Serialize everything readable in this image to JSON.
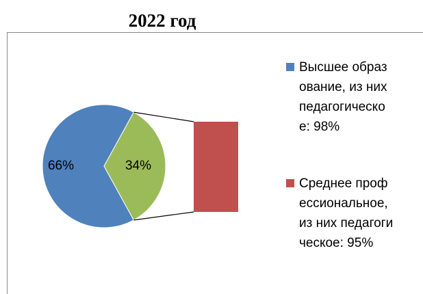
{
  "chart_data": {
    "type": "bar-of-pie",
    "title": "2022 год",
    "categories": [
      "Высшее образование, из них педагогическое: 98%",
      "Среднее профессиональное, из них педагогическое: 95%"
    ],
    "values": [
      66,
      34
    ],
    "value_labels": [
      "66%",
      "34%"
    ],
    "colors": [
      "#4f81bd",
      "#c0504d"
    ],
    "other_color": "#9bbb59"
  }
}
